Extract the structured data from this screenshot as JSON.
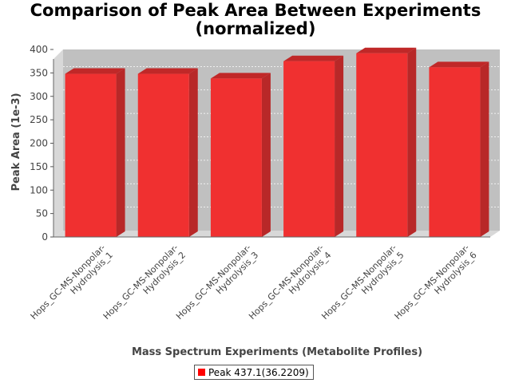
{
  "chart_data": {
    "type": "bar",
    "title_lines": [
      "Comparison of Peak Area Between Experiments",
      "(normalized)"
    ],
    "xlabel": "Mass Spectrum Experiments (Metabolite Profiles)",
    "ylabel": "Peak Area (1e-3)",
    "ylim": [
      0,
      400
    ],
    "yticks": [
      0,
      50,
      100,
      150,
      200,
      250,
      300,
      350,
      400
    ],
    "grid": true,
    "legend_position": "bottom",
    "categories": [
      [
        "Hops_GC-MS-Nonpolar-",
        "Hydrolysis_1"
      ],
      [
        "Hops_GC-MS-Nonpolar-",
        "Hydrolysis_2"
      ],
      [
        "Hops_GC-MS-Nonpolar-",
        "Hydrolysis_3"
      ],
      [
        "Hops_GC-MS-Nonpolar-",
        "Hydrolysis_4"
      ],
      [
        "Hops_GC-MS-Nonpolar-",
        "Hydrolysis_5"
      ],
      [
        "Hops_GC-MS-Nonpolar-",
        "Hydrolysis_6"
      ]
    ],
    "series": [
      {
        "name": "Peak 437.1(36.2209)",
        "color": "#ff0000",
        "values": [
          348,
          348,
          338,
          375,
          392,
          362
        ]
      }
    ],
    "colors": {
      "plot_bg": "#c0c0c0",
      "plot_side": "#d8d8d8",
      "bar_front": "#f03030",
      "bar_top": "#c02828",
      "bar_side": "#b82828"
    }
  }
}
